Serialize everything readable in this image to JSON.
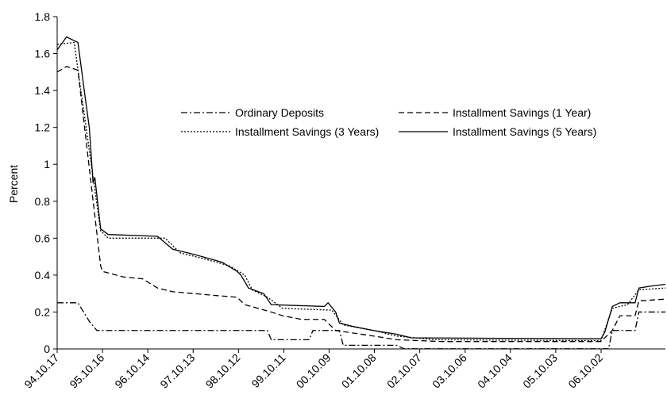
{
  "chart_data": {
    "type": "line",
    "y_label": "Percent",
    "xlim": [
      "94.10.17",
      "08.03.01"
    ],
    "xticks": [
      "94.10.17",
      "95.10.16",
      "96.10.14",
      "97.10.13",
      "98.10.12",
      "99.10.11",
      "00.10.09",
      "01.10.08",
      "02.10.07",
      "03.10.06",
      "04.10.04",
      "05.10.03",
      "06.10.02"
    ],
    "ylim": [
      0,
      1.8
    ],
    "yticks": [
      0,
      0.2,
      0.4,
      0.6,
      0.8,
      1,
      1.2,
      1.4,
      1.6,
      1.8
    ],
    "grid": false,
    "legend": "top-center",
    "series": [
      {
        "name": "Ordinary Deposits",
        "color": "#000000",
        "dash": "dashdot",
        "x": [
          "94.10.17",
          "95.04.01",
          "95.07.01",
          "95.09.01",
          "99.06.01",
          "99.07.01",
          "00.05.01",
          "00.06.01",
          "01.01.01",
          "01.02.01",
          "02.04.01",
          "02.06.01",
          "06.12.01",
          "07.01.01",
          "07.07.01",
          "07.08.01",
          "08.03.01"
        ],
        "values": [
          0.25,
          0.25,
          0.15,
          0.1,
          0.1,
          0.05,
          0.05,
          0.1,
          0.1,
          0.02,
          0.02,
          0.001,
          0.001,
          0.1,
          0.1,
          0.2,
          0.2
        ]
      },
      {
        "name": "Installment Savings (1 Year)",
        "color": "#000000",
        "dash": "dashed",
        "x": [
          "94.10.17",
          "95.01.01",
          "95.04.01",
          "95.10.01",
          "95.10.15",
          "96.04.01",
          "96.09.01",
          "97.01.01",
          "97.05.01",
          "98.04.01",
          "98.10.01",
          "98.12.01",
          "99.07.01",
          "99.10.01",
          "00.03.01",
          "00.09.01",
          "00.12.01",
          "01.10.01",
          "02.04.01",
          "03.04.01",
          "06.10.01",
          "07.01.01",
          "07.03.01",
          "07.07.01",
          "07.08.01",
          "08.03.01"
        ],
        "values": [
          1.5,
          1.53,
          1.51,
          0.45,
          0.42,
          0.39,
          0.38,
          0.33,
          0.31,
          0.29,
          0.28,
          0.24,
          0.2,
          0.18,
          0.16,
          0.16,
          0.1,
          0.07,
          0.05,
          0.04,
          0.04,
          0.1,
          0.18,
          0.18,
          0.26,
          0.27
        ]
      },
      {
        "name": "Installment Savings (3 Years)",
        "color": "#000000",
        "dash": "dotted",
        "x": [
          "94.10.17",
          "95.03.01",
          "95.10.01",
          "95.12.01",
          "97.03.01",
          "97.07.01",
          "98.01.01",
          "98.08.01",
          "98.12.01",
          "99.02.01",
          "99.06.01",
          "99.10.01",
          "00.11.01",
          "01.02.01",
          "01.10.01",
          "02.04.01",
          "03.02.01",
          "06.10.01",
          "07.01.01",
          "07.05.01",
          "07.08.01",
          "08.03.01"
        ],
        "values": [
          1.65,
          1.66,
          0.64,
          0.6,
          0.6,
          0.52,
          0.49,
          0.45,
          0.4,
          0.32,
          0.28,
          0.22,
          0.21,
          0.13,
          0.1,
          0.07,
          0.05,
          0.045,
          0.22,
          0.24,
          0.32,
          0.33
        ]
      },
      {
        "name": "Installment Savings (5 Years)",
        "color": "#000000",
        "dash": "solid",
        "x": [
          "94.10.17",
          "95.01.01",
          "95.04.01",
          "95.06.01",
          "95.07.01",
          "95.08.01",
          "95.08.15",
          "95.10.01",
          "95.12.01",
          "97.01.01",
          "97.05.01",
          "97.11.01",
          "98.06.01",
          "98.10.01",
          "98.11.01",
          "99.01.01",
          "99.05.01",
          "99.07.01",
          "00.09.01",
          "00.10.01",
          "00.12.01",
          "01.01.01",
          "01.05.01",
          "01.10.01",
          "02.04.01",
          "02.08.01",
          "06.10.01",
          "06.11.01",
          "07.01.01",
          "07.03.01",
          "07.07.01",
          "07.08.01",
          "07.11.01",
          "08.03.01"
        ],
        "values": [
          1.62,
          1.69,
          1.66,
          1.35,
          1.2,
          0.9,
          0.93,
          0.65,
          0.62,
          0.61,
          0.54,
          0.51,
          0.47,
          0.42,
          0.4,
          0.33,
          0.3,
          0.24,
          0.23,
          0.25,
          0.2,
          0.14,
          0.12,
          0.1,
          0.08,
          0.06,
          0.055,
          0.09,
          0.23,
          0.25,
          0.25,
          0.33,
          0.34,
          0.35
        ]
      }
    ]
  }
}
